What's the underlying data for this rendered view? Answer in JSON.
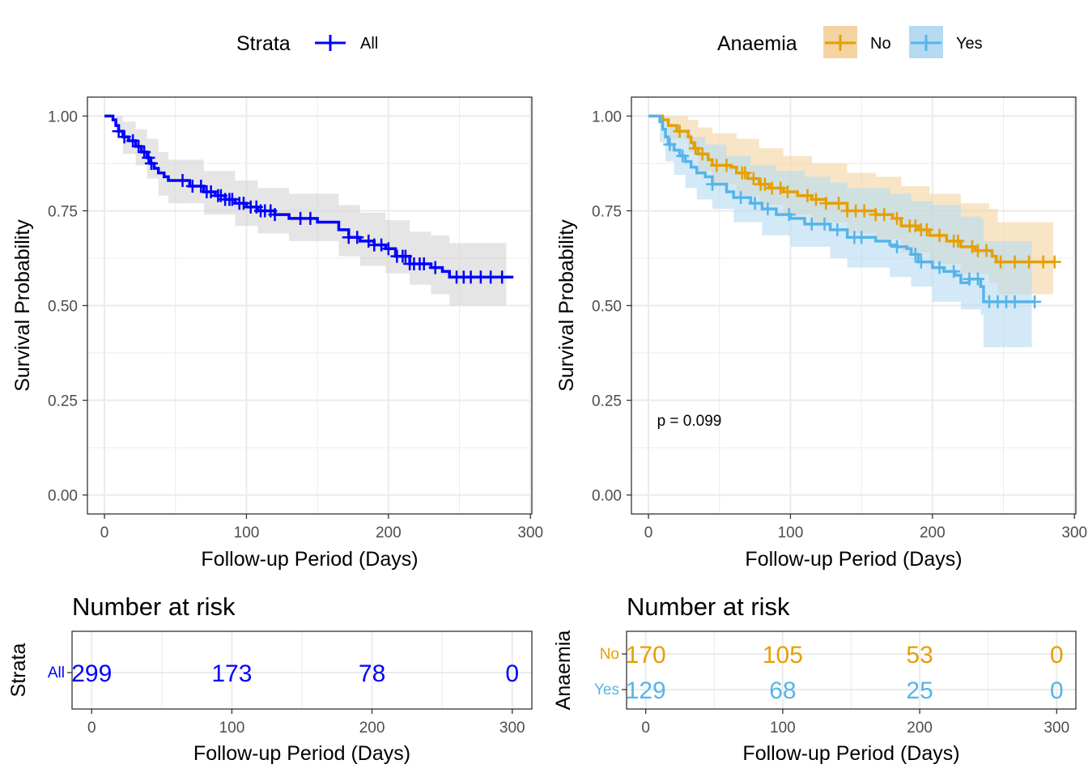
{
  "chart_data": [
    {
      "type": "line",
      "subtype": "kaplan-meier",
      "legend": {
        "title": "Strata",
        "position": "top",
        "entries": [
          {
            "name": "All",
            "color": "#0000ff"
          }
        ]
      },
      "xlabel": "Follow-up Period (Days)",
      "ylabel": "Survival Probability",
      "xlim": [
        -12,
        301
      ],
      "ylim": [
        -0.05,
        1.05
      ],
      "xticks": [
        "0",
        "100",
        "200",
        "300"
      ],
      "yticks": [
        "0.00",
        "0.25",
        "0.50",
        "0.75",
        "1.00"
      ],
      "grid": true,
      "confidence_band": true,
      "series": [
        {
          "name": "All",
          "color": "#0000ff",
          "fill": "#cfcfcf",
          "steps": [
            [
              0,
              1.0
            ],
            [
              6,
              0.99
            ],
            [
              8,
              0.975
            ],
            [
              10,
              0.96
            ],
            [
              13,
              0.945
            ],
            [
              17,
              0.935
            ],
            [
              22,
              0.92
            ],
            [
              26,
              0.905
            ],
            [
              30,
              0.89
            ],
            [
              32,
              0.875
            ],
            [
              35,
              0.862
            ],
            [
              38,
              0.85
            ],
            [
              42,
              0.84
            ],
            [
              45,
              0.83
            ],
            [
              60,
              0.815
            ],
            [
              70,
              0.8
            ],
            [
              78,
              0.79
            ],
            [
              85,
              0.78
            ],
            [
              92,
              0.77
            ],
            [
              100,
              0.76
            ],
            [
              108,
              0.75
            ],
            [
              120,
              0.74
            ],
            [
              130,
              0.73
            ],
            [
              150,
              0.72
            ],
            [
              165,
              0.7
            ],
            [
              172,
              0.68
            ],
            [
              180,
              0.67
            ],
            [
              190,
              0.66
            ],
            [
              198,
              0.65
            ],
            [
              205,
              0.63
            ],
            [
              215,
              0.61
            ],
            [
              230,
              0.6
            ],
            [
              238,
              0.59
            ],
            [
              243,
              0.575
            ],
            [
              288,
              0.575
            ]
          ],
          "upper": [
            [
              0,
              1.0
            ],
            [
              8,
              1.0
            ],
            [
              13,
              0.985
            ],
            [
              22,
              0.965
            ],
            [
              30,
              0.94
            ],
            [
              38,
              0.905
            ],
            [
              45,
              0.885
            ],
            [
              70,
              0.855
            ],
            [
              92,
              0.83
            ],
            [
              108,
              0.81
            ],
            [
              130,
              0.795
            ],
            [
              165,
              0.765
            ],
            [
              180,
              0.745
            ],
            [
              198,
              0.725
            ],
            [
              215,
              0.695
            ],
            [
              230,
              0.685
            ],
            [
              243,
              0.665
            ],
            [
              283,
              0.665
            ]
          ],
          "lower": [
            [
              0,
              1.0
            ],
            [
              8,
              0.955
            ],
            [
              13,
              0.9
            ],
            [
              22,
              0.87
            ],
            [
              30,
              0.835
            ],
            [
              38,
              0.79
            ],
            [
              45,
              0.77
            ],
            [
              70,
              0.74
            ],
            [
              92,
              0.71
            ],
            [
              108,
              0.69
            ],
            [
              130,
              0.67
            ],
            [
              165,
              0.63
            ],
            [
              180,
              0.605
            ],
            [
              198,
              0.585
            ],
            [
              215,
              0.555
            ],
            [
              230,
              0.53
            ],
            [
              243,
              0.5
            ],
            [
              283,
              0.5
            ]
          ],
          "censor_times": [
            10,
            14,
            20,
            24,
            28,
            31,
            33,
            55,
            62,
            68,
            72,
            75,
            80,
            82,
            85,
            88,
            90,
            95,
            98,
            103,
            107,
            110,
            113,
            117,
            120,
            138,
            145,
            172,
            178,
            186,
            190,
            195,
            200,
            206,
            210,
            212,
            215,
            218,
            222,
            225,
            233,
            248,
            253,
            258,
            265,
            272,
            280
          ]
        }
      ],
      "risk_table": {
        "title": "Number at risk",
        "ylabel": "Strata",
        "xlabel": "Follow-up Period (Days)",
        "xticks": [
          "0",
          "100",
          "200",
          "300"
        ],
        "times": [
          0,
          100,
          200,
          300
        ],
        "rows": [
          {
            "label": "All",
            "color": "#0000ff",
            "counts": [
              "299",
              "173",
              "78",
              "0"
            ]
          }
        ]
      }
    },
    {
      "type": "line",
      "subtype": "kaplan-meier",
      "legend": {
        "title": "Anaemia",
        "position": "top",
        "entries": [
          {
            "name": "No",
            "color": "#e69f00"
          },
          {
            "name": "Yes",
            "color": "#56b4e9"
          }
        ]
      },
      "xlabel": "Follow-up Period (Days)",
      "ylabel": "Survival Probability",
      "xlim": [
        -12,
        301
      ],
      "ylim": [
        -0.05,
        1.05
      ],
      "xticks": [
        "0",
        "100",
        "200",
        "300"
      ],
      "yticks": [
        "0.00",
        "0.25",
        "0.50",
        "0.75",
        "1.00"
      ],
      "grid": true,
      "annotation": "p = 0.099",
      "series": [
        {
          "name": "No",
          "color": "#e69f00",
          "fill": "#f3d3a0",
          "steps": [
            [
              0,
              1.0
            ],
            [
              10,
              0.99
            ],
            [
              14,
              0.975
            ],
            [
              20,
              0.96
            ],
            [
              28,
              0.945
            ],
            [
              30,
              0.93
            ],
            [
              32,
              0.915
            ],
            [
              35,
              0.9
            ],
            [
              42,
              0.885
            ],
            [
              45,
              0.87
            ],
            [
              58,
              0.865
            ],
            [
              62,
              0.85
            ],
            [
              70,
              0.835
            ],
            [
              78,
              0.82
            ],
            [
              85,
              0.81
            ],
            [
              95,
              0.8
            ],
            [
              105,
              0.79
            ],
            [
              115,
              0.78
            ],
            [
              125,
              0.77
            ],
            [
              140,
              0.75
            ],
            [
              160,
              0.74
            ],
            [
              172,
              0.73
            ],
            [
              178,
              0.71
            ],
            [
              190,
              0.7
            ],
            [
              198,
              0.685
            ],
            [
              210,
              0.67
            ],
            [
              220,
              0.655
            ],
            [
              230,
              0.645
            ],
            [
              242,
              0.63
            ],
            [
              245,
              0.615
            ],
            [
              286,
              0.615
            ]
          ],
          "upper": [
            [
              0,
              1.0
            ],
            [
              20,
              1.0
            ],
            [
              28,
              0.99
            ],
            [
              35,
              0.97
            ],
            [
              45,
              0.955
            ],
            [
              62,
              0.94
            ],
            [
              78,
              0.915
            ],
            [
              95,
              0.895
            ],
            [
              115,
              0.875
            ],
            [
              140,
              0.85
            ],
            [
              160,
              0.84
            ],
            [
              178,
              0.815
            ],
            [
              198,
              0.795
            ],
            [
              220,
              0.77
            ],
            [
              240,
              0.755
            ],
            [
              246,
              0.72
            ],
            [
              285,
              0.72
            ]
          ],
          "lower": [
            [
              0,
              1.0
            ],
            [
              14,
              0.94
            ],
            [
              28,
              0.905
            ],
            [
              35,
              0.855
            ],
            [
              45,
              0.82
            ],
            [
              62,
              0.79
            ],
            [
              78,
              0.765
            ],
            [
              95,
              0.74
            ],
            [
              115,
              0.72
            ],
            [
              140,
              0.69
            ],
            [
              160,
              0.675
            ],
            [
              178,
              0.64
            ],
            [
              198,
              0.61
            ],
            [
              220,
              0.585
            ],
            [
              240,
              0.56
            ],
            [
              246,
              0.53
            ],
            [
              285,
              0.53
            ]
          ]
        },
        {
          "name": "Yes",
          "color": "#56b4e9",
          "fill": "#b5daf2",
          "steps": [
            [
              0,
              1.0
            ],
            [
              8,
              0.985
            ],
            [
              10,
              0.965
            ],
            [
              12,
              0.945
            ],
            [
              14,
              0.925
            ],
            [
              18,
              0.91
            ],
            [
              22,
              0.895
            ],
            [
              26,
              0.88
            ],
            [
              30,
              0.865
            ],
            [
              34,
              0.85
            ],
            [
              40,
              0.84
            ],
            [
              45,
              0.82
            ],
            [
              55,
              0.8
            ],
            [
              60,
              0.785
            ],
            [
              72,
              0.77
            ],
            [
              80,
              0.755
            ],
            [
              90,
              0.74
            ],
            [
              100,
              0.73
            ],
            [
              110,
              0.715
            ],
            [
              128,
              0.7
            ],
            [
              140,
              0.68
            ],
            [
              160,
              0.67
            ],
            [
              170,
              0.66
            ],
            [
              175,
              0.655
            ],
            [
              182,
              0.65
            ],
            [
              185,
              0.635
            ],
            [
              190,
              0.615
            ],
            [
              200,
              0.6
            ],
            [
              208,
              0.59
            ],
            [
              216,
              0.58
            ],
            [
              220,
              0.56
            ],
            [
              226,
              0.57
            ],
            [
              234,
              0.55
            ],
            [
              236,
              0.51
            ],
            [
              272,
              0.51
            ]
          ],
          "upper": [
            [
              0,
              1.0
            ],
            [
              10,
              1.0
            ],
            [
              14,
              0.98
            ],
            [
              22,
              0.965
            ],
            [
              30,
              0.945
            ],
            [
              40,
              0.925
            ],
            [
              55,
              0.895
            ],
            [
              72,
              0.87
            ],
            [
              90,
              0.855
            ],
            [
              110,
              0.84
            ],
            [
              128,
              0.825
            ],
            [
              140,
              0.81
            ],
            [
              170,
              0.795
            ],
            [
              185,
              0.775
            ],
            [
              200,
              0.765
            ],
            [
              220,
              0.735
            ],
            [
              234,
              0.73
            ],
            [
              236,
              0.67
            ],
            [
              270,
              0.67
            ]
          ],
          "lower": [
            [
              0,
              1.0
            ],
            [
              8,
              0.93
            ],
            [
              12,
              0.88
            ],
            [
              18,
              0.845
            ],
            [
              26,
              0.81
            ],
            [
              34,
              0.78
            ],
            [
              45,
              0.755
            ],
            [
              60,
              0.72
            ],
            [
              80,
              0.685
            ],
            [
              100,
              0.655
            ],
            [
              128,
              0.625
            ],
            [
              140,
              0.6
            ],
            [
              170,
              0.575
            ],
            [
              185,
              0.55
            ],
            [
              200,
              0.51
            ],
            [
              220,
              0.49
            ],
            [
              234,
              0.475
            ],
            [
              236,
              0.39
            ],
            [
              270,
              0.39
            ]
          ]
        }
      ],
      "censor_times": {
        "No": [
          22,
          33,
          38,
          48,
          55,
          66,
          68,
          74,
          79,
          82,
          87,
          93,
          98,
          112,
          118,
          125,
          134,
          140,
          146,
          152,
          160,
          166,
          175,
          184,
          188,
          192,
          196,
          205,
          215,
          218,
          228,
          232,
          238,
          248,
          258,
          268,
          278,
          286
        ],
        "Yes": [
          15,
          24,
          45,
          65,
          75,
          84,
          99,
          115,
          124,
          133,
          145,
          150,
          175,
          188,
          192,
          205,
          215,
          226,
          232,
          240,
          246,
          252,
          258,
          272
        ]
      },
      "risk_table": {
        "title": "Number at risk",
        "ylabel": "Anaemia",
        "xlabel": "Follow-up Period (Days)",
        "xticks": [
          "0",
          "100",
          "200",
          "300"
        ],
        "times": [
          0,
          100,
          200,
          300
        ],
        "rows": [
          {
            "label": "No",
            "color": "#e69f00",
            "counts": [
              "170",
              "105",
              "53",
              "0"
            ]
          },
          {
            "label": "Yes",
            "color": "#56b4e9",
            "counts": [
              "129",
              "68",
              "25",
              "0"
            ]
          }
        ]
      }
    }
  ]
}
